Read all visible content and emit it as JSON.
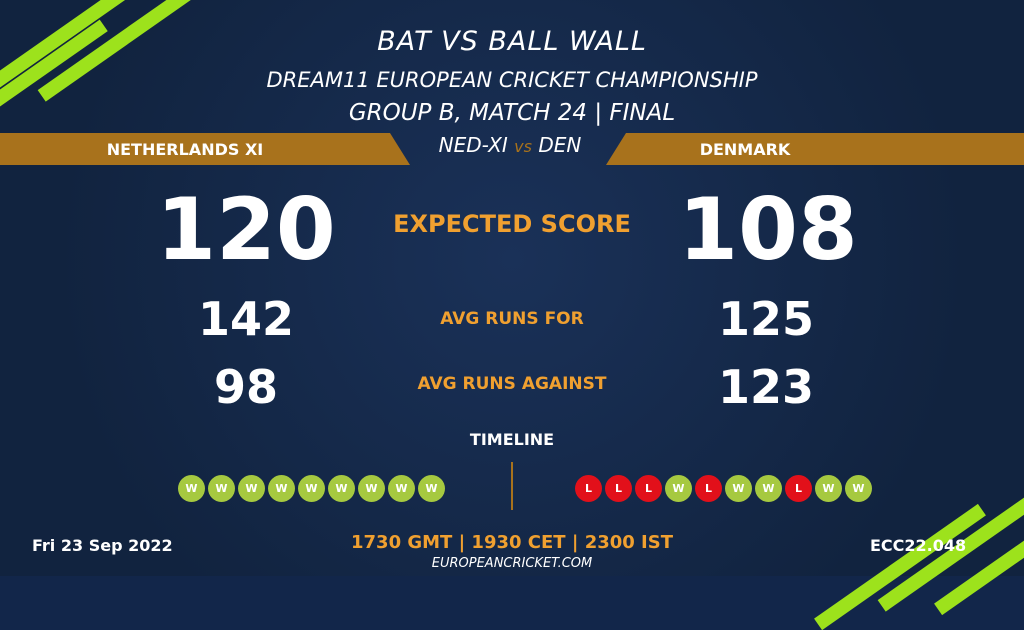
{
  "header": {
    "title": "BAT VS BALL WALL",
    "tournament": "DREAM11 EUROPEAN CRICKET CHAMPIONSHIP",
    "match": "GROUP B, MATCH 24 | FINAL"
  },
  "teams": {
    "left": "NETHERLANDS XI",
    "right": "DENMARK",
    "left_code": "NED-XI",
    "vs": "vs",
    "right_code": "DEN"
  },
  "stats": {
    "expected": {
      "label": "EXPECTED SCORE",
      "left": "120",
      "right": "108"
    },
    "runs_for": {
      "label": "AVG RUNS FOR",
      "left": "142",
      "right": "125"
    },
    "runs_against": {
      "label": "AVG RUNS AGAINST",
      "left": "98",
      "right": "123"
    }
  },
  "timeline": {
    "label": "TIMELINE",
    "left": [
      "W",
      "W",
      "W",
      "W",
      "W",
      "W",
      "W",
      "W",
      "W"
    ],
    "right": [
      "L",
      "L",
      "L",
      "W",
      "L",
      "W",
      "W",
      "L",
      "W",
      "W"
    ]
  },
  "colors": {
    "win": "#a6c940",
    "loss": "#e2101a",
    "accent": "#f0a030",
    "band": "#a8721c",
    "background": "#12264a",
    "stripe": "#9de21c"
  },
  "footer": {
    "date": "Fri 23 Sep 2022",
    "times": "1730 GMT | 1930 CET | 2300 IST",
    "site": "EUROPEANCRICKET.COM",
    "code": "ECC22.048"
  }
}
